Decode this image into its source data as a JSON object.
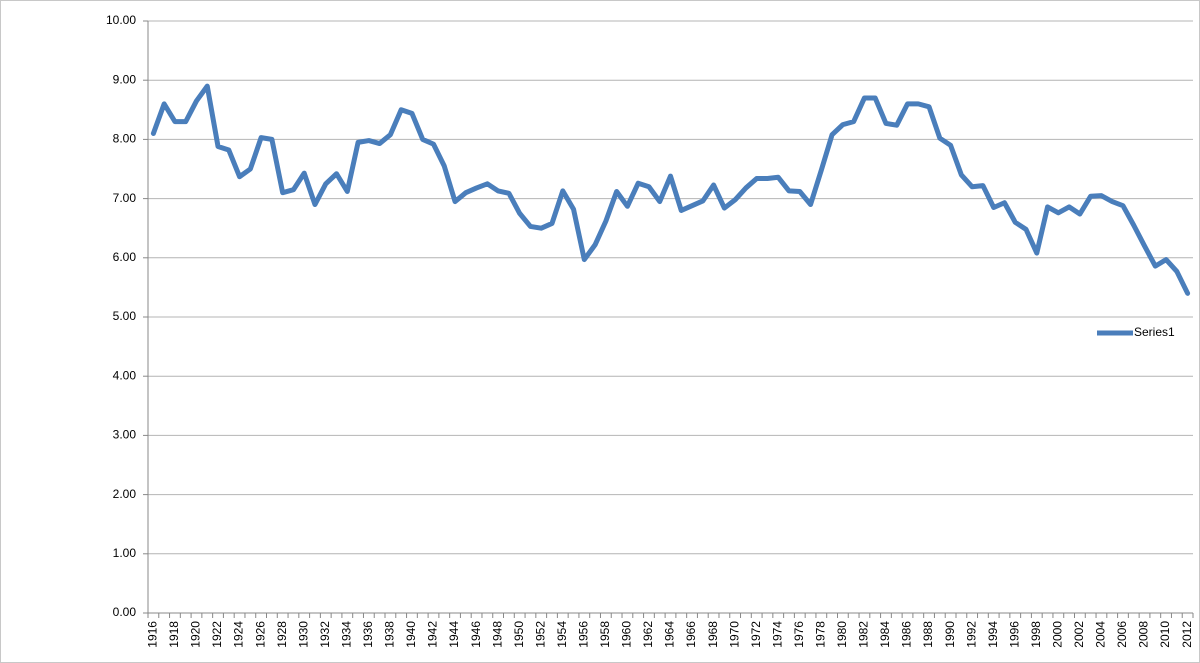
{
  "chart_data": {
    "type": "line",
    "categories": [
      "1916",
      null,
      "1918",
      null,
      "1920",
      null,
      "1922",
      null,
      "1924",
      null,
      "1926",
      null,
      "1928",
      null,
      "1930",
      null,
      "1932",
      null,
      "1934",
      null,
      "1936",
      null,
      "1938",
      null,
      "1940",
      null,
      "1942",
      null,
      "1944",
      null,
      "1946",
      null,
      "1948",
      null,
      "1950",
      null,
      "1952",
      null,
      "1954",
      null,
      "1956",
      null,
      "1958",
      null,
      "1960",
      null,
      "1962",
      null,
      "1964",
      null,
      "1966",
      null,
      "1968",
      null,
      "1970",
      null,
      "1972",
      null,
      "1974",
      null,
      "1976",
      null,
      "1978",
      null,
      "1980",
      null,
      "1982",
      null,
      "1984",
      null,
      "1986",
      null,
      "1988",
      null,
      "1990",
      null,
      "1992",
      null,
      "1994",
      null,
      "1996",
      null,
      "1998",
      null,
      "2000",
      null,
      "2002",
      null,
      "2004",
      null,
      "2006",
      null,
      "2008",
      null,
      "2010",
      null,
      "2012"
    ],
    "series": [
      {
        "name": "Series1",
        "color": "#4a7ebb",
        "values": [
          8.1,
          8.6,
          8.3,
          8.3,
          8.65,
          8.9,
          7.88,
          7.82,
          7.37,
          7.5,
          8.03,
          8.0,
          7.1,
          7.15,
          7.43,
          6.9,
          7.25,
          7.42,
          7.12,
          7.95,
          7.98,
          7.93,
          8.08,
          8.5,
          8.44,
          8.0,
          7.92,
          7.55,
          6.95,
          7.1,
          7.18,
          7.25,
          7.13,
          7.09,
          6.75,
          6.53,
          6.5,
          6.58,
          7.13,
          6.82,
          5.97,
          6.22,
          6.62,
          7.12,
          6.87,
          7.26,
          7.2,
          6.95,
          7.38,
          6.8,
          6.88,
          6.96,
          7.23,
          6.84,
          6.98,
          7.18,
          7.34,
          7.34,
          7.36,
          7.13,
          7.12,
          6.9,
          7.48,
          8.08,
          8.25,
          8.3,
          8.7,
          8.7,
          8.27,
          8.24,
          8.6,
          8.6,
          8.55,
          8.02,
          7.9,
          7.4,
          7.2,
          7.22,
          6.85,
          6.93,
          6.6,
          6.48,
          6.08,
          6.86,
          6.76,
          6.86,
          6.74,
          7.04,
          7.05,
          6.95,
          6.88,
          6.55,
          6.2,
          5.86,
          5.97,
          5.77,
          5.4
        ]
      }
    ],
    "ylim": [
      0,
      10
    ],
    "yticks": [
      {
        "value": 0,
        "label": "0.00"
      },
      {
        "value": 1,
        "label": "1.00"
      },
      {
        "value": 2,
        "label": "2.00"
      },
      {
        "value": 3,
        "label": "3.00"
      },
      {
        "value": 4,
        "label": "4.00"
      },
      {
        "value": 5,
        "label": "5.00"
      },
      {
        "value": 6,
        "label": "6.00"
      },
      {
        "value": 7,
        "label": "7.00"
      },
      {
        "value": 8,
        "label": "8.00"
      },
      {
        "value": 9,
        "label": "9.00"
      },
      {
        "value": 10,
        "label": "10.00"
      }
    ],
    "grid": true,
    "legend": "right"
  }
}
